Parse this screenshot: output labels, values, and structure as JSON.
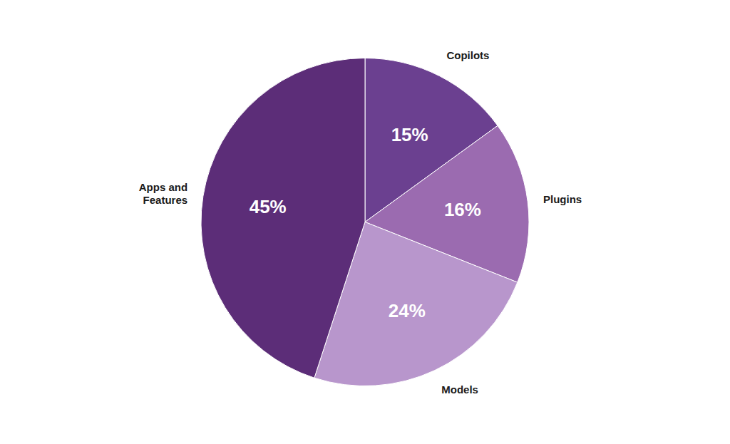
{
  "chart_data": {
    "type": "pie",
    "categories": [
      "Copilots",
      "Plugins",
      "Models",
      "Apps and\nFeatures"
    ],
    "values": [
      15,
      16,
      24,
      45
    ],
    "colors": [
      "#6B4090",
      "#9B6BB0",
      "#B896CC",
      "#5C2D78"
    ],
    "data_labels": true,
    "value_labels": [
      "15%",
      "16%",
      "24%",
      "45%"
    ]
  }
}
